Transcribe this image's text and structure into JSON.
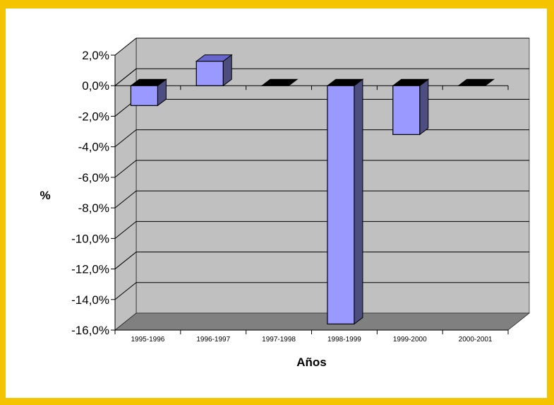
{
  "chart_data": {
    "type": "bar",
    "title": "",
    "xlabel": "Años",
    "ylabel": "%",
    "categories": [
      "1995-1996",
      "1996-1997",
      "1997-1998",
      "1998-1999",
      "1999-2000",
      "2000-2001"
    ],
    "values": [
      -1.3,
      1.6,
      0.0,
      -15.6,
      -3.2,
      0.0
    ],
    "ylim": [
      -16,
      2
    ],
    "yticks": [
      "2,0%",
      "0,0%",
      "-2,0%",
      "-4,0%",
      "-6,0%",
      "-8,0%",
      "-10,0%",
      "-12,0%",
      "-14,0%",
      "-16,0%"
    ],
    "ytick_values": [
      2,
      0,
      -2,
      -4,
      -6,
      -8,
      -10,
      -12,
      -14,
      -16
    ],
    "grid": true,
    "legend": "none",
    "three_d": true
  },
  "colors": {
    "border": "#f5c400",
    "wall": "#c0c0c0",
    "floor": "#808080",
    "bar_front": "#9999ff",
    "bar_side": "#4d4d80",
    "bar_top": "#6666cc",
    "gridline": "#000000"
  }
}
